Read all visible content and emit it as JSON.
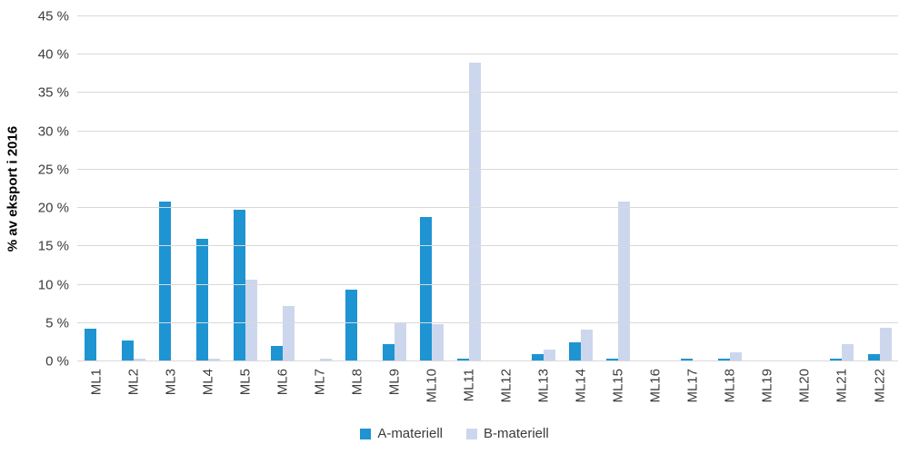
{
  "chart_data": {
    "type": "bar",
    "title": "",
    "ylabel": "% av eksport  i 2016",
    "xlabel": "",
    "ylim": [
      0,
      45
    ],
    "ytick_step": 5,
    "ytick_suffix": " %",
    "grid": true,
    "legend_position": "bottom",
    "categories": [
      "ML1",
      "ML2",
      "ML3",
      "ML4",
      "ML5",
      "ML6",
      "ML7",
      "ML8",
      "ML9",
      "ML10",
      "ML11",
      "ML12",
      "ML13",
      "ML14",
      "ML15",
      "ML16",
      "ML17",
      "ML18",
      "ML19",
      "ML20",
      "ML21",
      "ML22"
    ],
    "series": [
      {
        "name": "A-materiell",
        "color": "#1e94d2",
        "values": [
          4.3,
          2.7,
          20.8,
          16.0,
          19.8,
          2.0,
          0,
          9.3,
          2.2,
          18.8,
          0.4,
          0,
          1.0,
          2.5,
          0.4,
          0,
          0.4,
          0.4,
          0,
          0,
          0.4,
          1.0
        ]
      },
      {
        "name": "B-materiell",
        "color": "#ccd7ee",
        "values": [
          0,
          0.3,
          0,
          0.3,
          10.7,
          7.2,
          0.3,
          0,
          5.0,
          4.8,
          39.0,
          0,
          1.5,
          4.1,
          20.8,
          0,
          0,
          1.2,
          0,
          0,
          2.2,
          4.4
        ]
      }
    ]
  }
}
